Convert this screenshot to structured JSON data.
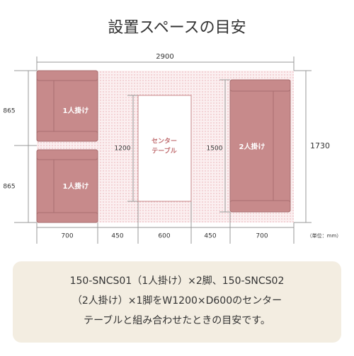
{
  "header": {
    "title": "設置スペースの目安"
  },
  "dimensions": {
    "total_width": "2900",
    "left_top": "865",
    "left_bottom": "865",
    "table_depth": "1200",
    "sofa2_width": "1500",
    "total_depth": "1730",
    "bottom": [
      "700",
      "450",
      "600",
      "450",
      "700"
    ],
    "unit": "（単位：mm）"
  },
  "furniture": {
    "sofa1_top": "1人掛け",
    "sofa1_bottom": "1人掛け",
    "sofa2": "2人掛け",
    "table": [
      "センター",
      "テーブル"
    ]
  },
  "caption": {
    "lines": [
      "150-SNCS01（1人掛け）×2脚、150-SNCS02",
      "（2人掛け）×1脚をW1200×D600のセンター",
      "テーブルと組み合わせたときの目安です。"
    ]
  }
}
